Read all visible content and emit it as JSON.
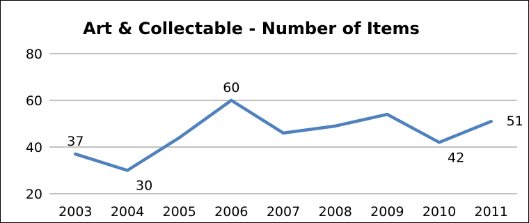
{
  "chart_data": {
    "type": "line",
    "title": "Art & Collectable - Number of Items",
    "xlabel": "",
    "ylabel": "",
    "categories": [
      "2003",
      "2004",
      "2005",
      "2006",
      "2007",
      "2008",
      "2009",
      "2010",
      "2011"
    ],
    "series": [
      {
        "values": [
          37,
          30,
          44,
          60,
          46,
          49,
          54,
          42,
          51
        ],
        "color": "#4f81bd"
      }
    ],
    "data_labels": [
      {
        "index": 0,
        "text": "37",
        "placement": "above"
      },
      {
        "index": 1,
        "text": "30",
        "placement": "below-right"
      },
      {
        "index": 3,
        "text": "60",
        "placement": "above"
      },
      {
        "index": 7,
        "text": "42",
        "placement": "below-right"
      },
      {
        "index": 8,
        "text": "51",
        "placement": "right"
      }
    ],
    "ylim": [
      20,
      80
    ],
    "yticks": [
      "80",
      "60",
      "40",
      "20"
    ],
    "grid": true,
    "gridColor": "#868686",
    "legend": "none"
  }
}
